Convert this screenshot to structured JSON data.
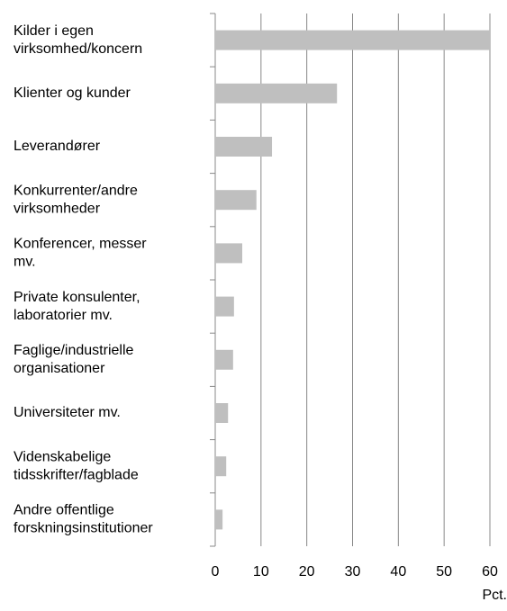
{
  "chart_data": {
    "type": "barh",
    "categories": [
      [
        "Kilder i egen",
        "virksomhed/koncern"
      ],
      [
        "Klienter og kunder"
      ],
      [
        "Leverandører"
      ],
      [
        "Konkurrenter/andre",
        "virksomheder"
      ],
      [
        "Konferencer, messer",
        "mv."
      ],
      [
        "Private konsulenter,",
        "laboratorier mv."
      ],
      [
        "Faglige/industrielle",
        "organisationer"
      ],
      [
        "Universiteter mv."
      ],
      [
        "Videnskabelige",
        "tidsskrifter/fagblade"
      ],
      [
        "Andre offentlige",
        "forskningsinstitutioner"
      ]
    ],
    "values": [
      60,
      26.6,
      12.4,
      9,
      5.9,
      4.1,
      3.9,
      2.8,
      2.4,
      1.6
    ],
    "color": "#bfbfbf",
    "xlabel": "Pct.",
    "xlim": [
      0,
      60
    ],
    "xticks": [
      0,
      10,
      20,
      30,
      40,
      50,
      60
    ],
    "grid": true
  }
}
